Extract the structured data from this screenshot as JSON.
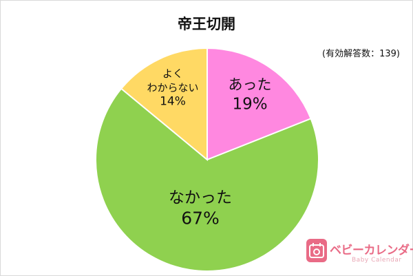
{
  "chart_data": {
    "type": "pie",
    "title": "帝王切開",
    "note": "(有効解答数：139)",
    "slices": [
      {
        "label_lines": [
          "あった"
        ],
        "percent_label": "19%",
        "value": 19,
        "color": "#ff88e0"
      },
      {
        "label_lines": [
          "なかった"
        ],
        "percent_label": "67%",
        "value": 67,
        "color": "#8fd14f"
      },
      {
        "label_lines": [
          "よく",
          "わからない"
        ],
        "percent_label": "14%",
        "value": 14,
        "color": "#ffd964"
      }
    ]
  },
  "logo": {
    "name": "ベビーカレンダー",
    "subtitle": "Baby Calendar"
  }
}
